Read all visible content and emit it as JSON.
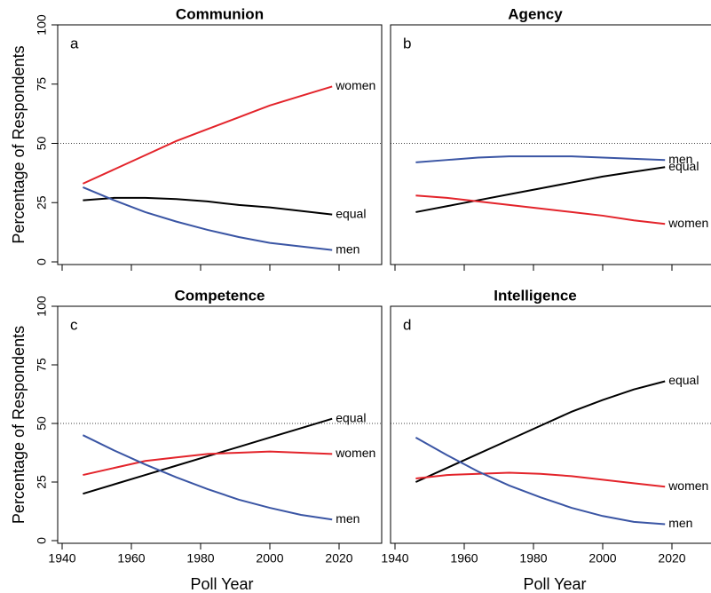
{
  "chart_data": [
    {
      "type": "line",
      "title": "Communion",
      "panel": "a",
      "ylabel": "Percentage of Respondents",
      "x": [
        1946,
        1955,
        1964,
        1973,
        1982,
        1991,
        2000,
        2009,
        2018
      ],
      "series": [
        {
          "name": "women",
          "color": "#e3242b",
          "values": [
            33,
            39,
            45,
            51,
            56,
            61,
            66,
            70,
            74
          ]
        },
        {
          "name": "equal",
          "color": "#000000",
          "values": [
            26,
            27,
            27,
            26.5,
            25.5,
            24,
            23,
            21.5,
            20
          ]
        },
        {
          "name": "men",
          "color": "#3a55a4",
          "values": [
            31.5,
            26,
            21,
            17,
            13.5,
            10.5,
            8,
            6.5,
            5
          ]
        }
      ],
      "xlim": [
        1940,
        2020
      ],
      "xticks": [
        1940,
        1960,
        1980,
        2000,
        2020
      ],
      "ylim": [
        0,
        100
      ],
      "yticks": [
        0,
        25,
        50,
        75,
        100
      ],
      "hline": 50
    },
    {
      "type": "line",
      "title": "Agency",
      "panel": "b",
      "x": [
        1946,
        1955,
        1964,
        1973,
        1982,
        1991,
        2000,
        2009,
        2018
      ],
      "series": [
        {
          "name": "men",
          "color": "#3a55a4",
          "values": [
            42,
            43,
            44,
            44.5,
            44.5,
            44.5,
            44,
            43.5,
            43
          ]
        },
        {
          "name": "equal",
          "color": "#000000",
          "values": [
            21,
            23.5,
            26,
            28.5,
            31,
            33.5,
            36,
            38,
            40
          ]
        },
        {
          "name": "women",
          "color": "#e3242b",
          "values": [
            28,
            27,
            25.5,
            24,
            22.5,
            21,
            19.5,
            17.5,
            16
          ]
        }
      ],
      "xlim": [
        1940,
        2020
      ],
      "xticks": [
        1940,
        1960,
        1980,
        2000,
        2020
      ],
      "ylim": [
        0,
        100
      ],
      "hline": 50
    },
    {
      "type": "line",
      "title": "Competence",
      "panel": "c",
      "ylabel": "Percentage of Respondents",
      "xlabel": "Poll Year",
      "x": [
        1946,
        1955,
        1964,
        1973,
        1982,
        1991,
        2000,
        2009,
        2018
      ],
      "series": [
        {
          "name": "equal",
          "color": "#000000",
          "values": [
            20,
            24,
            28,
            32,
            36,
            40,
            44,
            48,
            52
          ]
        },
        {
          "name": "women",
          "color": "#e3242b",
          "values": [
            28,
            31,
            34,
            35.5,
            37,
            37.5,
            38,
            37.5,
            37
          ]
        },
        {
          "name": "men",
          "color": "#3a55a4",
          "values": [
            45,
            38.5,
            32.5,
            27,
            22,
            17.5,
            14,
            11,
            9
          ]
        }
      ],
      "xlim": [
        1940,
        2020
      ],
      "xticks": [
        1940,
        1960,
        1980,
        2000,
        2020
      ],
      "ylim": [
        0,
        100
      ],
      "yticks": [
        0,
        25,
        50,
        75,
        100
      ],
      "hline": 50
    },
    {
      "type": "line",
      "title": "Intelligence",
      "panel": "d",
      "xlabel": "Poll Year",
      "x": [
        1946,
        1955,
        1964,
        1973,
        1982,
        1991,
        2000,
        2009,
        2018
      ],
      "series": [
        {
          "name": "equal",
          "color": "#000000",
          "values": [
            25,
            31,
            37,
            43,
            49,
            55,
            60,
            64.5,
            68
          ]
        },
        {
          "name": "women",
          "color": "#e3242b",
          "values": [
            26.5,
            28,
            28.5,
            29,
            28.5,
            27.5,
            26,
            24.5,
            23
          ]
        },
        {
          "name": "men",
          "color": "#3a55a4",
          "values": [
            44,
            36.5,
            29.5,
            23.5,
            18.5,
            14,
            10.5,
            8,
            7
          ]
        }
      ],
      "xlim": [
        1940,
        2020
      ],
      "xticks": [
        1940,
        1960,
        1980,
        2000,
        2020
      ],
      "ylim": [
        0,
        100
      ],
      "hline": 50
    }
  ]
}
